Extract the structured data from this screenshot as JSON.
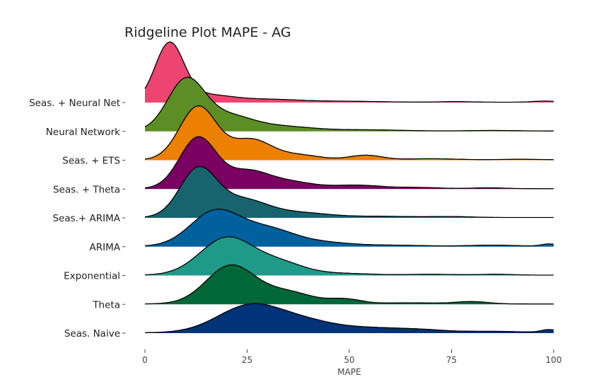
{
  "chart_data": {
    "type": "ridgeline",
    "title": "Ridgeline Plot MAPE - AG",
    "xlabel": "MAPE",
    "ylabel": "",
    "xlim": [
      0,
      100
    ],
    "x_ticks": [
      0,
      25,
      50,
      75,
      100
    ],
    "grid": false,
    "legend": "none",
    "series": [
      {
        "name": "Seas. + Neural Net",
        "color": "#EE4471",
        "peaks": [
          [
            6,
            1.0,
            3.5
          ],
          [
            15,
            0.12,
            6
          ],
          [
            30,
            0.05,
            8
          ],
          [
            50,
            0.015,
            8
          ],
          [
            76,
            0.01,
            4
          ],
          [
            98,
            0.02,
            3
          ]
        ]
      },
      {
        "name": "Neural Network",
        "color": "#5C8E25",
        "peaks": [
          [
            10,
            0.86,
            4.5
          ],
          [
            20,
            0.25,
            6
          ],
          [
            33,
            0.08,
            8
          ],
          [
            55,
            0.02,
            8
          ],
          [
            85,
            0.01,
            6
          ]
        ]
      },
      {
        "name": "Seas. + ETS",
        "color": "#EC8000",
        "peaks": [
          [
            13,
            0.92,
            4.5
          ],
          [
            26,
            0.35,
            5
          ],
          [
            38,
            0.08,
            5
          ],
          [
            54,
            0.08,
            4
          ],
          [
            70,
            0.02,
            6
          ],
          [
            92,
            0.01,
            5
          ]
        ]
      },
      {
        "name": "Seas. + Theta",
        "color": "#7A0061",
        "peaks": [
          [
            13,
            0.88,
            4.5
          ],
          [
            25,
            0.28,
            5
          ],
          [
            35,
            0.12,
            6
          ],
          [
            52,
            0.06,
            6
          ],
          [
            67,
            0.02,
            5
          ],
          [
            84,
            0.015,
            4
          ]
        ]
      },
      {
        "name": "Seas.+ ARIMA",
        "color": "#17646F",
        "peaks": [
          [
            13,
            0.82,
            4.5
          ],
          [
            24,
            0.3,
            6
          ],
          [
            38,
            0.08,
            7
          ],
          [
            58,
            0.02,
            8
          ],
          [
            75,
            0.015,
            5
          ]
        ]
      },
      {
        "name": "ARIMA",
        "color": "#00619F",
        "peaks": [
          [
            17,
            0.58,
            6
          ],
          [
            30,
            0.3,
            7
          ],
          [
            45,
            0.05,
            6
          ],
          [
            60,
            0.02,
            8
          ],
          [
            85,
            0.02,
            6
          ],
          [
            99,
            0.04,
            2
          ]
        ]
      },
      {
        "name": "Exponential",
        "color": "#1F9A89",
        "peaks": [
          [
            20,
            0.64,
            6.5
          ],
          [
            33,
            0.2,
            6
          ],
          [
            48,
            0.03,
            7
          ],
          [
            70,
            0.015,
            6
          ],
          [
            86,
            0.015,
            4
          ]
        ]
      },
      {
        "name": "Theta",
        "color": "#006838",
        "peaks": [
          [
            21,
            0.66,
            6
          ],
          [
            35,
            0.2,
            6
          ],
          [
            49,
            0.08,
            4
          ],
          [
            65,
            0.02,
            7
          ],
          [
            80,
            0.04,
            4
          ]
        ]
      },
      {
        "name": "Seas. Naive",
        "color": "#003377",
        "peaks": [
          [
            26,
            0.48,
            8
          ],
          [
            40,
            0.15,
            7
          ],
          [
            55,
            0.08,
            8
          ],
          [
            68,
            0.04,
            6
          ],
          [
            85,
            0.025,
            8
          ],
          [
            99,
            0.05,
            2
          ]
        ]
      }
    ]
  }
}
